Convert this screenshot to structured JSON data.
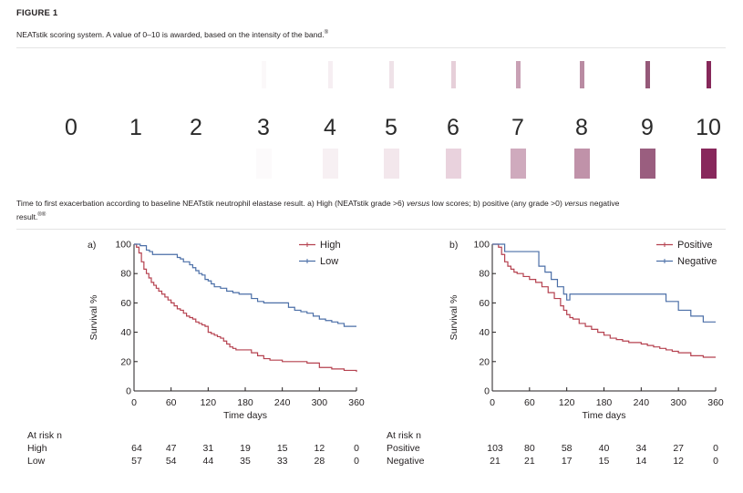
{
  "figure": {
    "label": "FIGURE 1",
    "caption": "NEATstik scoring system. A value of 0–10 is awarded, based on the intensity of the band.",
    "caption_ref": "®"
  },
  "scoring": {
    "grades": [
      "0",
      "1",
      "2",
      "3",
      "4",
      "5",
      "6",
      "7",
      "8",
      "9",
      "10"
    ],
    "band_colors": [
      "#ffffff",
      "#ffffff",
      "#ffffff",
      "#fbf8f9",
      "#f6eef2",
      "#efe2e8",
      "#e6cfd9",
      "#c9a1b5",
      "#b98ba2",
      "#955979",
      "#86285a"
    ],
    "swatch_colors": [
      "#ffffff",
      "#ffffff",
      "#ffffff",
      "#fcfafb",
      "#f7f0f3",
      "#f3e7ec",
      "#e9d2dd",
      "#cfaabd",
      "#c092a9",
      "#9a5e7f",
      "#88285c"
    ]
  },
  "caption2": {
    "text": "Time to first exacerbation according to baseline NEATstik neutrophil elastase result. a) High (NEATstik grade >6) versus low scores; b) positive (any grade >0) versus negative result.",
    "ref": "®®",
    "text_a": "Time to first exacerbation according to baseline NEATstik neutrophil elastase result. a) High (NEATstik grade >6) ",
    "versus1": "versus",
    "text_b": " low scores; b) positive (any grade >0) ",
    "versus2": "versus",
    "text_c": " negative",
    "text_d": "result."
  },
  "chart_data": [
    {
      "type": "line",
      "panel_label": "a)",
      "xlabel": "Time days",
      "ylabel": "Survival %",
      "xlim": [
        0,
        360
      ],
      "ylim": [
        0,
        100
      ],
      "xticks": [
        0,
        60,
        120,
        180,
        240,
        300,
        360
      ],
      "yticks": [
        0,
        20,
        40,
        60,
        80,
        100
      ],
      "legend_position": "top-right",
      "series": [
        {
          "name": "High",
          "color": "#b5414f",
          "x": [
            0,
            4,
            8,
            12,
            16,
            20,
            24,
            28,
            32,
            36,
            40,
            45,
            50,
            55,
            60,
            65,
            70,
            75,
            80,
            85,
            90,
            95,
            100,
            105,
            110,
            115,
            120,
            125,
            130,
            135,
            140,
            145,
            150,
            155,
            160,
            165,
            170,
            175,
            180,
            190,
            200,
            210,
            220,
            240,
            260,
            280,
            300,
            320,
            340,
            360
          ],
          "y": [
            100,
            98,
            94,
            88,
            83,
            80,
            77,
            74,
            72,
            70,
            68,
            66,
            64,
            62,
            60,
            58,
            56,
            55,
            53,
            51,
            50,
            49,
            47,
            46,
            45,
            44,
            40,
            39,
            38,
            37,
            36,
            34,
            32,
            30,
            29,
            28,
            28,
            28,
            28,
            26,
            24,
            22,
            21,
            20,
            20,
            19,
            16,
            15,
            14,
            13
          ]
        },
        {
          "name": "Low",
          "color": "#4b6fa7",
          "x": [
            0,
            10,
            20,
            25,
            30,
            60,
            70,
            75,
            80,
            85,
            90,
            95,
            100,
            105,
            110,
            115,
            120,
            125,
            130,
            140,
            150,
            160,
            170,
            180,
            190,
            200,
            210,
            220,
            230,
            240,
            250,
            260,
            270,
            280,
            290,
            300,
            310,
            320,
            330,
            340,
            350,
            360
          ],
          "y": [
            100,
            99,
            96,
            95,
            93,
            93,
            91,
            90,
            88,
            88,
            86,
            84,
            82,
            80,
            79,
            76,
            75,
            73,
            71,
            70,
            68,
            67,
            66,
            66,
            63,
            61,
            60,
            60,
            60,
            60,
            57,
            55,
            54,
            53,
            51,
            49,
            48,
            47,
            46,
            44,
            44,
            44
          ]
        }
      ],
      "at_risk": {
        "title": "At risk n",
        "rows": [
          {
            "label": "High",
            "values": [
              "64",
              "47",
              "31",
              "19",
              "15",
              "12",
              "0"
            ]
          },
          {
            "label": "Low",
            "values": [
              "57",
              "54",
              "44",
              "35",
              "33",
              "28",
              "0"
            ]
          }
        ]
      }
    },
    {
      "type": "line",
      "panel_label": "b)",
      "xlabel": "Time days",
      "ylabel": "Survival %",
      "xlim": [
        0,
        360
      ],
      "ylim": [
        0,
        100
      ],
      "xticks": [
        0,
        60,
        120,
        180,
        240,
        300,
        360
      ],
      "yticks": [
        0,
        20,
        40,
        60,
        80,
        100
      ],
      "legend_position": "top-right",
      "series": [
        {
          "name": "Positive",
          "color": "#b5414f",
          "x": [
            0,
            10,
            15,
            20,
            25,
            30,
            35,
            40,
            50,
            60,
            70,
            80,
            90,
            100,
            110,
            115,
            120,
            125,
            130,
            140,
            150,
            160,
            170,
            180,
            190,
            200,
            210,
            220,
            230,
            240,
            250,
            260,
            270,
            280,
            290,
            300,
            320,
            340,
            360
          ],
          "y": [
            100,
            98,
            93,
            88,
            85,
            83,
            81,
            80,
            78,
            76,
            74,
            71,
            67,
            63,
            58,
            55,
            52,
            50,
            49,
            46,
            44,
            42,
            40,
            38,
            36,
            35,
            34,
            33,
            33,
            32,
            31,
            30,
            29,
            28,
            27,
            26,
            24,
            23,
            23
          ]
        },
        {
          "name": "Negative",
          "color": "#4b6fa7",
          "x": [
            0,
            10,
            20,
            60,
            75,
            85,
            95,
            105,
            115,
            120,
            125,
            240,
            280,
            300,
            320,
            340,
            360
          ],
          "y": [
            100,
            100,
            95,
            95,
            85,
            81,
            76,
            71,
            66,
            62,
            66,
            66,
            61,
            55,
            51,
            47,
            47
          ]
        }
      ],
      "at_risk": {
        "title": "At risk n",
        "rows": [
          {
            "label": "Positive",
            "values": [
              "103",
              "80",
              "58",
              "40",
              "34",
              "27",
              "0"
            ]
          },
          {
            "label": "Negative",
            "values": [
              "21",
              "21",
              "17",
              "15",
              "14",
              "12",
              "0"
            ]
          }
        ]
      }
    }
  ]
}
